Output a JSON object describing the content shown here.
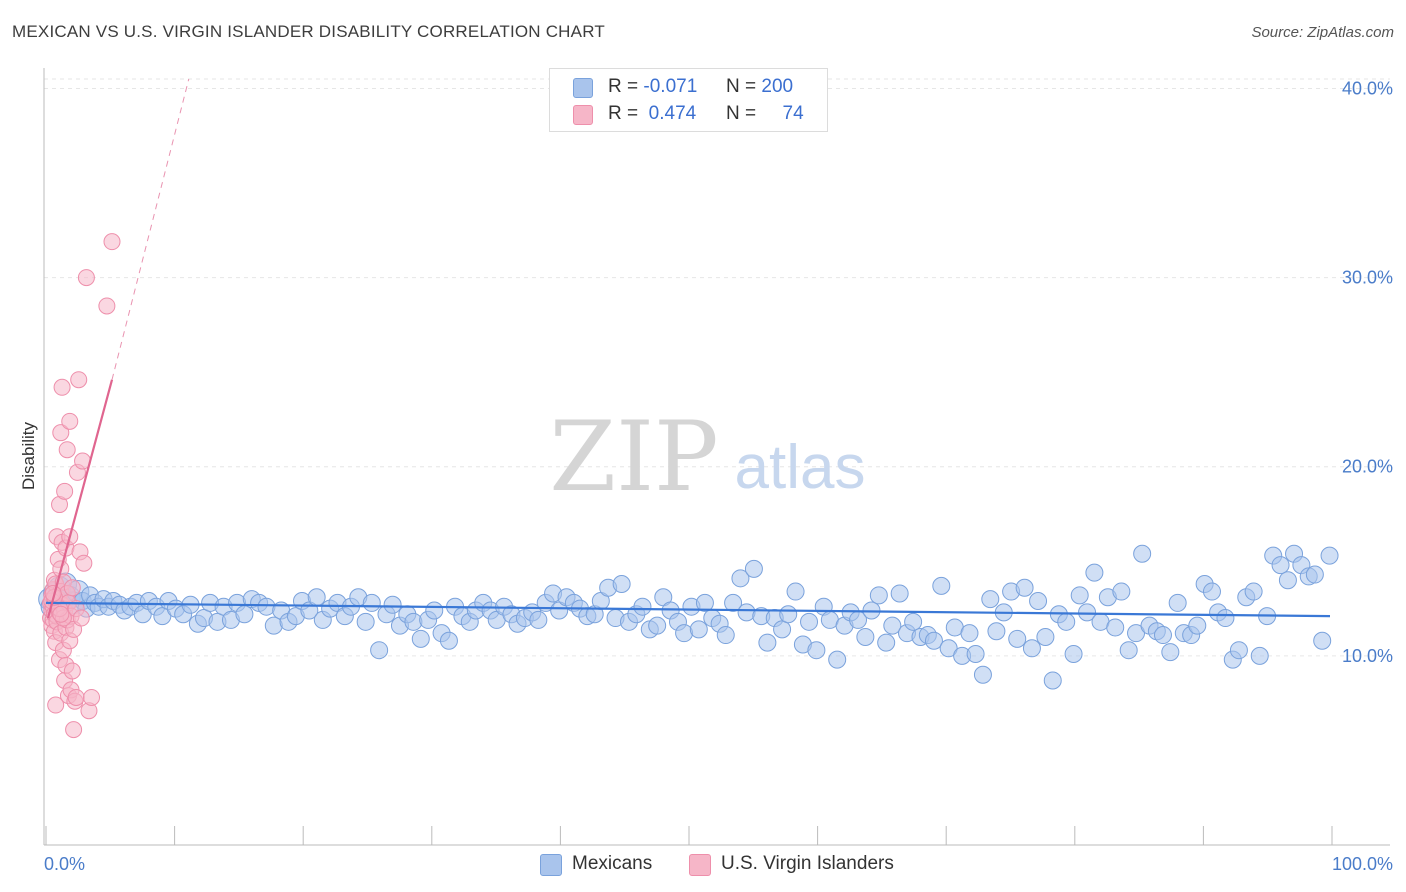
{
  "header": {
    "title": "MEXICAN VS U.S. VIRGIN ISLANDER DISABILITY CORRELATION CHART",
    "source": "Source: ZipAtlas.com"
  },
  "watermark": {
    "zip": "ZIP",
    "atlas": "atlas"
  },
  "legend": {
    "rows": [
      {
        "series": "Mexicans",
        "r_label": "R =",
        "r_value": "-0.071",
        "n_label": "N =",
        "n_value": "200",
        "color": "#a9c4ec"
      },
      {
        "series": "U.S. Virgin Islanders",
        "r_label": "R =",
        "r_value": "0.474",
        "n_label": "N =",
        "n_value": "74",
        "color": "#f6b6c8"
      }
    ]
  },
  "colors": {
    "blue_fill": "#a9c4ec",
    "blue_stroke": "#7aa2dc",
    "blue_line": "#3a78d6",
    "pink_fill": "#f6b6c8",
    "pink_stroke": "#ee8fab",
    "pink_line": "#e0658f",
    "grid": "#e6e6e6",
    "tick_label": "#4a7cc9"
  },
  "chart_data": {
    "type": "scatter",
    "title": "MEXICAN VS U.S. VIRGIN ISLANDER DISABILITY CORRELATION CHART",
    "xlabel": "",
    "ylabel": "Disability",
    "xlim": [
      0,
      100
    ],
    "ylim": [
      0,
      40.5
    ],
    "x_tick_labels": [
      "0.0%",
      "100.0%"
    ],
    "y_ticks": [
      10,
      20,
      30,
      40
    ],
    "y_tick_labels": [
      "10.0%",
      "20.0%",
      "30.0%",
      "40.0%"
    ],
    "grid": true,
    "series": [
      {
        "name": "Mexicans",
        "r": -0.071,
        "n": 200,
        "trend": {
          "x": [
            0,
            100
          ],
          "y": [
            12.8,
            12.1
          ]
        },
        "points": [
          [
            0.3,
            13.0
          ],
          [
            0.5,
            12.6
          ],
          [
            0.7,
            13.3
          ],
          [
            0.9,
            12.9
          ],
          [
            1.1,
            13.6
          ],
          [
            1.3,
            12.7
          ],
          [
            1.6,
            13.8
          ],
          [
            1.9,
            13.1
          ],
          [
            2.2,
            12.8
          ],
          [
            2.6,
            13.4
          ],
          [
            3.0,
            12.9
          ],
          [
            3.3,
            12.5
          ],
          [
            3.6,
            13.2
          ],
          [
            4.0,
            12.8
          ],
          [
            4.3,
            12.6
          ],
          [
            4.7,
            13.0
          ],
          [
            5.1,
            12.6
          ],
          [
            5.5,
            12.9
          ],
          [
            6.0,
            12.7
          ],
          [
            6.4,
            12.4
          ],
          [
            6.9,
            12.6
          ],
          [
            7.4,
            12.8
          ],
          [
            7.9,
            12.2
          ],
          [
            8.4,
            12.9
          ],
          [
            9.0,
            12.6
          ],
          [
            9.5,
            12.1
          ],
          [
            10.0,
            12.9
          ],
          [
            10.6,
            12.5
          ],
          [
            11.2,
            12.2
          ],
          [
            11.8,
            12.7
          ],
          [
            12.4,
            11.7
          ],
          [
            12.9,
            12.0
          ],
          [
            13.4,
            12.8
          ],
          [
            14.0,
            11.8
          ],
          [
            14.5,
            12.6
          ],
          [
            15.1,
            11.9
          ],
          [
            15.6,
            12.8
          ],
          [
            16.2,
            12.2
          ],
          [
            16.8,
            13.0
          ],
          [
            17.4,
            12.8
          ],
          [
            18.0,
            12.6
          ],
          [
            18.6,
            11.6
          ],
          [
            19.2,
            12.4
          ],
          [
            19.8,
            11.8
          ],
          [
            20.4,
            12.1
          ],
          [
            20.9,
            12.9
          ],
          [
            21.5,
            12.4
          ],
          [
            22.1,
            13.1
          ],
          [
            22.6,
            11.9
          ],
          [
            23.2,
            12.5
          ],
          [
            23.8,
            12.8
          ],
          [
            24.4,
            12.1
          ],
          [
            24.9,
            12.6
          ],
          [
            25.5,
            13.1
          ],
          [
            26.1,
            11.8
          ],
          [
            26.6,
            12.8
          ],
          [
            27.2,
            10.3
          ],
          [
            27.8,
            12.2
          ],
          [
            28.3,
            12.7
          ],
          [
            28.9,
            11.6
          ],
          [
            29.5,
            12.2
          ],
          [
            30.0,
            11.8
          ],
          [
            30.6,
            10.9
          ],
          [
            31.2,
            11.9
          ],
          [
            31.7,
            12.4
          ],
          [
            32.3,
            11.2
          ],
          [
            32.9,
            10.8
          ],
          [
            33.4,
            12.6
          ],
          [
            34.0,
            12.1
          ],
          [
            34.6,
            11.8
          ],
          [
            35.1,
            12.4
          ],
          [
            35.7,
            12.8
          ],
          [
            36.3,
            12.4
          ],
          [
            36.8,
            11.9
          ],
          [
            37.4,
            12.6
          ],
          [
            38.0,
            12.2
          ],
          [
            38.5,
            11.7
          ],
          [
            39.1,
            12.0
          ],
          [
            39.7,
            12.3
          ],
          [
            40.2,
            11.9
          ],
          [
            40.8,
            12.8
          ],
          [
            41.4,
            13.3
          ],
          [
            41.9,
            12.4
          ],
          [
            42.5,
            13.1
          ],
          [
            43.1,
            12.8
          ],
          [
            43.6,
            12.5
          ],
          [
            44.2,
            12.1
          ],
          [
            44.8,
            12.2
          ],
          [
            45.3,
            12.9
          ],
          [
            45.9,
            13.6
          ],
          [
            46.5,
            12.0
          ],
          [
            47.0,
            13.8
          ],
          [
            47.6,
            11.8
          ],
          [
            48.2,
            12.2
          ],
          [
            48.7,
            12.6
          ],
          [
            49.3,
            11.4
          ],
          [
            49.9,
            11.6
          ],
          [
            50.4,
            13.1
          ],
          [
            51.0,
            12.4
          ],
          [
            51.6,
            11.8
          ],
          [
            52.1,
            11.2
          ],
          [
            52.7,
            12.6
          ],
          [
            53.3,
            11.4
          ],
          [
            53.8,
            12.8
          ],
          [
            54.4,
            12.0
          ],
          [
            55.0,
            11.7
          ],
          [
            55.5,
            11.1
          ],
          [
            56.1,
            12.8
          ],
          [
            56.7,
            14.1
          ],
          [
            57.2,
            12.3
          ],
          [
            57.8,
            14.6
          ],
          [
            58.4,
            12.1
          ],
          [
            58.9,
            10.7
          ],
          [
            59.5,
            12.0
          ],
          [
            60.1,
            11.4
          ],
          [
            60.6,
            12.2
          ],
          [
            61.2,
            13.4
          ],
          [
            61.8,
            10.6
          ],
          [
            62.3,
            11.8
          ],
          [
            62.9,
            10.3
          ],
          [
            63.5,
            12.6
          ],
          [
            64.0,
            11.9
          ],
          [
            64.6,
            9.8
          ],
          [
            65.2,
            11.6
          ],
          [
            65.7,
            12.3
          ],
          [
            66.3,
            11.9
          ],
          [
            66.9,
            11.0
          ],
          [
            67.4,
            12.4
          ],
          [
            68.0,
            13.2
          ],
          [
            68.6,
            10.7
          ],
          [
            69.1,
            11.6
          ],
          [
            69.7,
            13.3
          ],
          [
            70.3,
            11.2
          ],
          [
            70.8,
            11.8
          ],
          [
            71.4,
            11.0
          ],
          [
            72.0,
            11.1
          ],
          [
            72.5,
            10.8
          ],
          [
            73.1,
            13.7
          ],
          [
            73.7,
            10.4
          ],
          [
            74.2,
            11.5
          ],
          [
            74.8,
            10.0
          ],
          [
            75.4,
            11.2
          ],
          [
            75.9,
            10.1
          ],
          [
            76.5,
            9.0
          ],
          [
            77.1,
            13.0
          ],
          [
            77.6,
            11.3
          ],
          [
            78.2,
            12.3
          ],
          [
            78.8,
            13.4
          ],
          [
            79.3,
            10.9
          ],
          [
            79.9,
            13.6
          ],
          [
            80.5,
            10.4
          ],
          [
            81.0,
            12.9
          ],
          [
            81.6,
            11.0
          ],
          [
            82.2,
            8.7
          ],
          [
            82.7,
            12.2
          ],
          [
            83.3,
            11.8
          ],
          [
            83.9,
            10.1
          ],
          [
            84.4,
            13.2
          ],
          [
            85.0,
            12.3
          ],
          [
            85.6,
            14.4
          ],
          [
            86.1,
            11.8
          ],
          [
            86.7,
            13.1
          ],
          [
            87.3,
            11.5
          ],
          [
            87.8,
            13.4
          ],
          [
            88.4,
            10.3
          ],
          [
            89.0,
            11.2
          ],
          [
            89.5,
            15.4
          ],
          [
            90.1,
            11.6
          ],
          [
            90.7,
            11.3
          ],
          [
            91.2,
            11.1
          ],
          [
            91.8,
            10.2
          ],
          [
            92.4,
            12.8
          ],
          [
            92.9,
            11.2
          ],
          [
            93.5,
            11.1
          ],
          [
            94.0,
            11.6
          ],
          [
            94.6,
            13.8
          ],
          [
            95.2,
            13.4
          ],
          [
            95.7,
            12.3
          ],
          [
            96.3,
            12.0
          ],
          [
            96.9,
            9.8
          ],
          [
            97.4,
            10.3
          ],
          [
            98.0,
            13.1
          ],
          [
            98.6,
            13.4
          ],
          [
            99.1,
            10.0
          ],
          [
            99.7,
            12.1
          ],
          [
            100.2,
            15.3
          ],
          [
            100.8,
            14.8
          ],
          [
            101.4,
            14.0
          ],
          [
            101.9,
            15.4
          ],
          [
            102.5,
            14.8
          ],
          [
            103.1,
            14.2
          ],
          [
            103.6,
            14.3
          ],
          [
            104.2,
            10.8
          ],
          [
            104.8,
            15.3
          ]
        ]
      },
      {
        "name": "U.S. Virgin Islanders",
        "r": 0.474,
        "n": 74,
        "trend": {
          "x": [
            0,
            5
          ],
          "y": [
            12.0,
            24.6
          ],
          "extended_y_at_x11": 40.5
        },
        "points": [
          [
            0.2,
            12.0
          ],
          [
            0.2,
            12.8
          ],
          [
            0.3,
            11.6
          ],
          [
            0.3,
            13.2
          ],
          [
            0.3,
            12.4
          ],
          [
            0.4,
            11.9
          ],
          [
            0.4,
            12.6
          ],
          [
            0.4,
            13.5
          ],
          [
            0.5,
            12.2
          ],
          [
            0.5,
            11.3
          ],
          [
            0.5,
            14.0
          ],
          [
            0.6,
            12.9
          ],
          [
            0.6,
            10.7
          ],
          [
            0.6,
            13.8
          ],
          [
            0.7,
            12.1
          ],
          [
            0.7,
            16.3
          ],
          [
            0.7,
            11.8
          ],
          [
            0.8,
            13.0
          ],
          [
            0.8,
            12.5
          ],
          [
            0.8,
            15.1
          ],
          [
            0.9,
            9.8
          ],
          [
            0.9,
            12.3
          ],
          [
            0.9,
            18.0
          ],
          [
            1.0,
            13.4
          ],
          [
            1.0,
            11.2
          ],
          [
            1.0,
            14.6
          ],
          [
            1.0,
            21.8
          ],
          [
            1.1,
            12.7
          ],
          [
            1.1,
            16.0
          ],
          [
            1.1,
            24.2
          ],
          [
            1.2,
            12.0
          ],
          [
            1.2,
            10.3
          ],
          [
            1.2,
            13.9
          ],
          [
            1.3,
            18.7
          ],
          [
            1.3,
            12.4
          ],
          [
            1.3,
            8.7
          ],
          [
            1.4,
            11.5
          ],
          [
            1.4,
            15.7
          ],
          [
            1.4,
            9.5
          ],
          [
            1.5,
            13.3
          ],
          [
            1.5,
            20.9
          ],
          [
            1.5,
            11.9
          ],
          [
            1.6,
            7.9
          ],
          [
            1.6,
            12.8
          ],
          [
            1.7,
            22.4
          ],
          [
            1.7,
            10.8
          ],
          [
            1.7,
            16.3
          ],
          [
            1.8,
            8.2
          ],
          [
            1.8,
            12.1
          ],
          [
            1.9,
            13.6
          ],
          [
            1.9,
            9.2
          ],
          [
            2.0,
            6.1
          ],
          [
            2.0,
            11.4
          ],
          [
            2.1,
            7.6
          ],
          [
            2.2,
            7.8
          ],
          [
            2.2,
            12.5
          ],
          [
            2.3,
            19.7
          ],
          [
            2.4,
            24.6
          ],
          [
            2.5,
            15.5
          ],
          [
            2.6,
            12.0
          ],
          [
            2.7,
            20.3
          ],
          [
            2.8,
            14.9
          ],
          [
            3.0,
            30.0
          ],
          [
            3.2,
            7.1
          ],
          [
            3.4,
            7.8
          ],
          [
            4.6,
            28.5
          ],
          [
            5.0,
            31.9
          ],
          [
            0.6,
            7.4
          ],
          [
            1.2,
            12.0
          ],
          [
            0.3,
            12.9
          ],
          [
            0.9,
            12.5
          ],
          [
            0.5,
            13.1
          ],
          [
            1.0,
            12.2
          ],
          [
            0.4,
            13.3
          ]
        ]
      }
    ]
  }
}
